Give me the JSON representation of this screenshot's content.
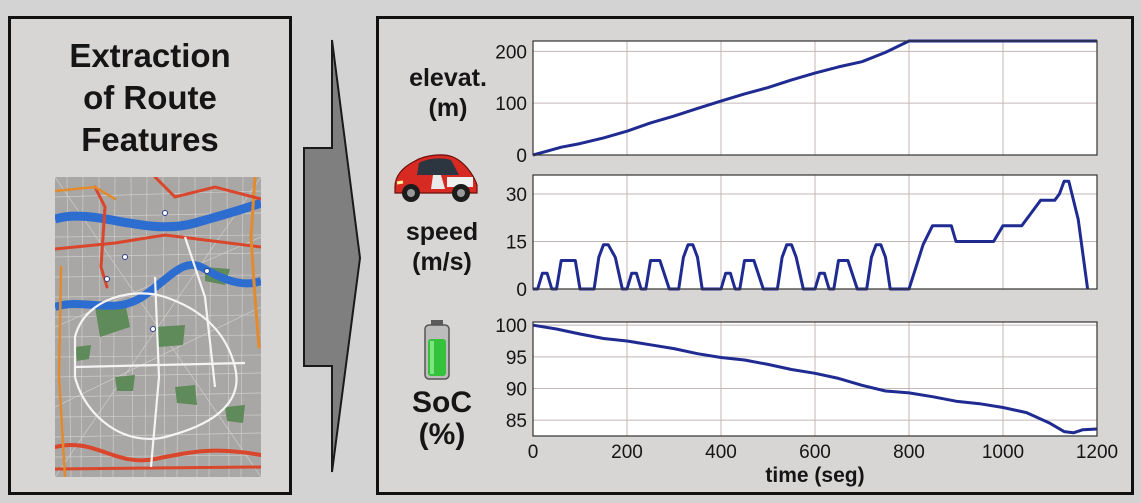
{
  "left_panel": {
    "title_lines": [
      "Extraction",
      "of Route",
      "Features"
    ]
  },
  "icons": {
    "car": "electric-car-icon",
    "battery": "battery-icon",
    "map": "city-map-image"
  },
  "colors": {
    "panel_bg": "#d8d5d5",
    "border": "#111111",
    "line": "#1f2b91",
    "arrow": "#7f7f7f",
    "grid": "#c4b6b6"
  },
  "right_panel": {
    "labels": {
      "elevation": [
        "elevat.",
        "(m)"
      ],
      "speed": [
        "speed",
        "(m/s)"
      ],
      "soc": [
        "SoC",
        "(%)"
      ]
    }
  },
  "chart_data": [
    {
      "type": "line",
      "name": "elevation",
      "ylim": [
        0,
        220
      ],
      "yticks": [
        "0",
        "100",
        "200"
      ],
      "ytick_values": [
        0,
        100,
        200
      ],
      "xlim": [
        0,
        1200
      ],
      "x": [
        0,
        20,
        60,
        100,
        150,
        200,
        250,
        300,
        350,
        400,
        450,
        500,
        550,
        600,
        650,
        700,
        750,
        800,
        900,
        1000,
        1100,
        1200
      ],
      "y": [
        0,
        5,
        15,
        22,
        33,
        46,
        62,
        75,
        90,
        104,
        118,
        130,
        145,
        158,
        170,
        180,
        198,
        220,
        220,
        220,
        220,
        220
      ]
    },
    {
      "type": "line",
      "name": "speed",
      "ylim": [
        0,
        36
      ],
      "yticks": [
        "0",
        "15",
        "30"
      ],
      "ytick_values": [
        0,
        15,
        30
      ],
      "xlim": [
        0,
        1200
      ],
      "x": [
        0,
        10,
        20,
        30,
        40,
        50,
        60,
        70,
        90,
        100,
        110,
        120,
        130,
        140,
        150,
        160,
        175,
        190,
        200,
        210,
        220,
        230,
        240,
        250,
        260,
        270,
        290,
        300,
        310,
        320,
        330,
        340,
        350,
        360,
        375,
        390,
        400,
        410,
        420,
        430,
        440,
        450,
        460,
        470,
        490,
        500,
        510,
        520,
        530,
        540,
        550,
        560,
        575,
        590,
        600,
        610,
        620,
        630,
        640,
        650,
        660,
        670,
        690,
        700,
        710,
        720,
        730,
        740,
        750,
        760,
        775,
        790,
        800,
        830,
        850,
        890,
        900,
        950,
        980,
        1000,
        1040,
        1060,
        1080,
        1110,
        1120,
        1130,
        1140,
        1160,
        1180
      ],
      "y": [
        0,
        0,
        5,
        5,
        0,
        0,
        9,
        9,
        9,
        0,
        0,
        0,
        0,
        10,
        14,
        14,
        10,
        0,
        0,
        5,
        5,
        0,
        0,
        9,
        9,
        9,
        0,
        0,
        0,
        10,
        14,
        14,
        10,
        0,
        0,
        0,
        0,
        5,
        5,
        0,
        0,
        9,
        9,
        9,
        0,
        0,
        0,
        0,
        10,
        14,
        14,
        10,
        0,
        0,
        0,
        5,
        5,
        0,
        0,
        9,
        9,
        9,
        0,
        0,
        0,
        10,
        14,
        14,
        10,
        0,
        0,
        0,
        0,
        14,
        20,
        20,
        15,
        15,
        15,
        20,
        20,
        24,
        28,
        28,
        30,
        34,
        34,
        22,
        0
      ]
    },
    {
      "type": "line",
      "name": "soc",
      "ylim": [
        82.5,
        100.5
      ],
      "yticks": [
        "85",
        "90",
        "95",
        "100"
      ],
      "ytick_values": [
        85,
        90,
        95,
        100
      ],
      "xlim": [
        0,
        1200
      ],
      "xticks": [
        "0",
        "200",
        "400",
        "600",
        "800",
        "1000",
        "1200"
      ],
      "xtick_values": [
        0,
        200,
        400,
        600,
        800,
        1000,
        1200
      ],
      "xlabel": "time (seg)",
      "x": [
        0,
        50,
        100,
        150,
        200,
        250,
        300,
        350,
        400,
        450,
        500,
        550,
        600,
        650,
        700,
        750,
        800,
        850,
        900,
        950,
        1000,
        1050,
        1100,
        1130,
        1150,
        1170,
        1200
      ],
      "y": [
        100,
        99.4,
        98.6,
        97.9,
        97.5,
        96.9,
        96.3,
        95.5,
        94.9,
        94.5,
        93.8,
        93.0,
        92.4,
        91.6,
        90.5,
        89.6,
        89.3,
        88.7,
        88.0,
        87.6,
        87.0,
        86.2,
        84.5,
        83.2,
        83.0,
        83.5,
        83.6
      ]
    }
  ]
}
